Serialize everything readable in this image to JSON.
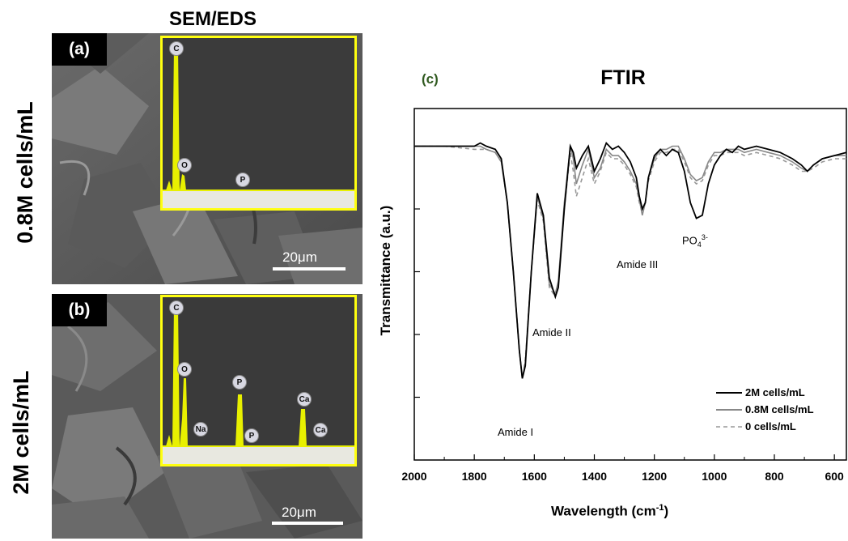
{
  "sem_title": "SEM/EDS",
  "rows": [
    {
      "label": "0.8M cells/mL"
    },
    {
      "label": "2M cells/mL"
    }
  ],
  "panels": [
    {
      "tag": "(a)",
      "scale_bar": "20μm",
      "eds_peaks": [
        {
          "el": "C",
          "level": 1.0
        },
        {
          "el": "O",
          "level": 0.22
        },
        {
          "el": "P",
          "level": 0.0
        }
      ]
    },
    {
      "tag": "(b)",
      "scale_bar": "20μm",
      "eds_peaks": [
        {
          "el": "C",
          "level": 1.0
        },
        {
          "el": "O",
          "level": 0.62
        },
        {
          "el": "Na",
          "level": 0.0
        },
        {
          "el": "P",
          "level": 0.46
        },
        {
          "el": "P",
          "level": 0.0
        },
        {
          "el": "Ca",
          "level": 0.33
        },
        {
          "el": "Ca",
          "level": 0.0
        }
      ]
    }
  ],
  "ftir": {
    "panel_label": "(c)",
    "title": "FTIR",
    "ylabel": "Transmittance (a.u.)",
    "xlabel_main": "Wavelength (cm",
    "xlabel_sup": "-1",
    "xlabel_end": ")",
    "annotations": {
      "amide1": "Amide I",
      "amide2": "Amide II",
      "amide3": "Amide III",
      "po4_base": "PO",
      "po4_sub": "4",
      "po4_sup": "3-"
    },
    "legend": [
      {
        "name": "2M cells/mL",
        "color": "#000000",
        "dash": false
      },
      {
        "name": "0.8M cells/mL",
        "color": "#888888",
        "dash": false
      },
      {
        "name": "0 cells/mL",
        "color": "#999999",
        "dash": true
      }
    ]
  },
  "chart_data": {
    "type": "line",
    "title": "FTIR",
    "xlabel": "Wavelength (cm-1)",
    "ylabel": "Transmittance (a.u.)",
    "xlim": [
      2000,
      560
    ],
    "x_reversed": true,
    "xticks": [
      2000,
      1800,
      1600,
      1400,
      1200,
      1000,
      800,
      600
    ],
    "ylim": [
      0,
      1
    ],
    "ytick_values": [
      0.2,
      0.4,
      0.6,
      0.8,
      1.0
    ],
    "ytick_labels_shown": false,
    "legend_position": "bottom-right",
    "series": [
      {
        "name": "2M cells/mL",
        "color": "#000000",
        "x": [
          2000,
          1900,
          1800,
          1780,
          1760,
          1730,
          1710,
          1690,
          1670,
          1650,
          1640,
          1630,
          1610,
          1590,
          1570,
          1550,
          1530,
          1520,
          1500,
          1480,
          1470,
          1460,
          1440,
          1420,
          1400,
          1380,
          1360,
          1340,
          1320,
          1300,
          1280,
          1260,
          1250,
          1240,
          1230,
          1220,
          1200,
          1180,
          1160,
          1140,
          1120,
          1100,
          1080,
          1060,
          1040,
          1020,
          1000,
          980,
          960,
          940,
          920,
          900,
          860,
          820,
          780,
          740,
          710,
          690,
          670,
          640,
          600,
          560
        ],
        "y": [
          1.0,
          1.0,
          1.0,
          1.01,
          1.0,
          0.99,
          0.96,
          0.82,
          0.6,
          0.35,
          0.26,
          0.3,
          0.6,
          0.85,
          0.78,
          0.58,
          0.52,
          0.55,
          0.8,
          1.0,
          0.98,
          0.93,
          0.97,
          1.0,
          0.92,
          0.96,
          1.01,
          0.99,
          1.0,
          0.98,
          0.95,
          0.9,
          0.84,
          0.8,
          0.82,
          0.9,
          0.97,
          0.99,
          0.97,
          0.99,
          0.98,
          0.92,
          0.82,
          0.77,
          0.78,
          0.88,
          0.94,
          0.97,
          0.99,
          0.98,
          1.0,
          0.99,
          1.0,
          0.99,
          0.98,
          0.96,
          0.94,
          0.92,
          0.94,
          0.96,
          0.97,
          0.98
        ]
      },
      {
        "name": "0.8M cells/mL",
        "color": "#888888",
        "x": [
          2000,
          1900,
          1800,
          1780,
          1760,
          1730,
          1710,
          1690,
          1670,
          1650,
          1640,
          1630,
          1610,
          1590,
          1570,
          1550,
          1530,
          1520,
          1500,
          1480,
          1470,
          1460,
          1440,
          1420,
          1400,
          1380,
          1360,
          1340,
          1320,
          1300,
          1280,
          1260,
          1250,
          1240,
          1230,
          1220,
          1200,
          1180,
          1160,
          1140,
          1120,
          1100,
          1080,
          1060,
          1040,
          1020,
          1000,
          980,
          960,
          940,
          920,
          900,
          860,
          820,
          780,
          740,
          710,
          690,
          670,
          640,
          600,
          560
        ],
        "y": [
          1.0,
          1.0,
          1.0,
          1.0,
          0.99,
          0.98,
          0.95,
          0.82,
          0.6,
          0.35,
          0.26,
          0.31,
          0.6,
          0.84,
          0.77,
          0.56,
          0.53,
          0.57,
          0.82,
          1.0,
          0.96,
          0.88,
          0.94,
          0.99,
          0.9,
          0.93,
          0.99,
          0.97,
          0.97,
          0.95,
          0.92,
          0.88,
          0.83,
          0.78,
          0.82,
          0.9,
          0.96,
          0.99,
          0.99,
          1.0,
          1.0,
          0.96,
          0.91,
          0.89,
          0.9,
          0.95,
          0.98,
          0.98,
          0.99,
          0.99,
          0.99,
          0.98,
          0.99,
          0.98,
          0.97,
          0.95,
          0.93,
          0.92,
          0.94,
          0.96,
          0.97,
          0.97
        ]
      },
      {
        "name": "0 cells/mL",
        "color": "#999999",
        "dashed": true,
        "x": [
          2000,
          1900,
          1800,
          1780,
          1760,
          1730,
          1710,
          1690,
          1670,
          1650,
          1640,
          1630,
          1610,
          1590,
          1570,
          1550,
          1530,
          1520,
          1500,
          1480,
          1470,
          1460,
          1440,
          1420,
          1400,
          1380,
          1360,
          1340,
          1320,
          1300,
          1280,
          1260,
          1250,
          1240,
          1230,
          1220,
          1200,
          1180,
          1160,
          1140,
          1120,
          1100,
          1080,
          1060,
          1040,
          1020,
          1000,
          980,
          960,
          940,
          920,
          900,
          860,
          820,
          780,
          740,
          710,
          690,
          670,
          640,
          600,
          560
        ],
        "y": [
          1.0,
          1.0,
          0.99,
          0.99,
          0.99,
          0.98,
          0.95,
          0.82,
          0.6,
          0.35,
          0.26,
          0.32,
          0.6,
          0.83,
          0.76,
          0.55,
          0.52,
          0.56,
          0.8,
          0.98,
          0.92,
          0.84,
          0.9,
          0.96,
          0.88,
          0.92,
          0.98,
          0.96,
          0.96,
          0.94,
          0.91,
          0.87,
          0.82,
          0.79,
          0.82,
          0.89,
          0.95,
          0.98,
          0.98,
          0.99,
          0.99,
          0.95,
          0.9,
          0.88,
          0.89,
          0.94,
          0.97,
          0.97,
          0.98,
          0.98,
          0.98,
          0.97,
          0.98,
          0.97,
          0.96,
          0.94,
          0.92,
          0.92,
          0.93,
          0.95,
          0.96,
          0.96
        ]
      }
    ]
  }
}
